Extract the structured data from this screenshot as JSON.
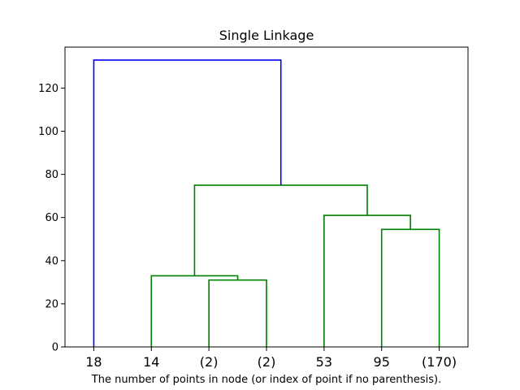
{
  "chart_data": {
    "type": "dendrogram",
    "title": "Single Linkage",
    "xlabel": "The number of points in node (or index of point if no parenthesis).",
    "ylabel": "",
    "ylim": [
      0,
      139
    ],
    "yticks": [
      0,
      20,
      40,
      60,
      80,
      100,
      120
    ],
    "leaves": [
      "18",
      "14",
      "(2)",
      "(2)",
      "53",
      "95",
      "(170)"
    ],
    "links": [
      {
        "left": 2,
        "right": 3,
        "height": 31,
        "color": "#008000"
      },
      {
        "left": 1,
        "right": "link0",
        "height": 33,
        "color": "#008000"
      },
      {
        "left": 5,
        "right": 6,
        "height": 54.5,
        "color": "#008000"
      },
      {
        "left": 4,
        "right": "link2",
        "height": 61,
        "color": "#008000"
      },
      {
        "left": "link1",
        "right": "link3",
        "height": 75,
        "color": "#008000"
      },
      {
        "left": 0,
        "right": "link4",
        "height": 133,
        "color": "#0000ff"
      }
    ],
    "grid": false
  }
}
